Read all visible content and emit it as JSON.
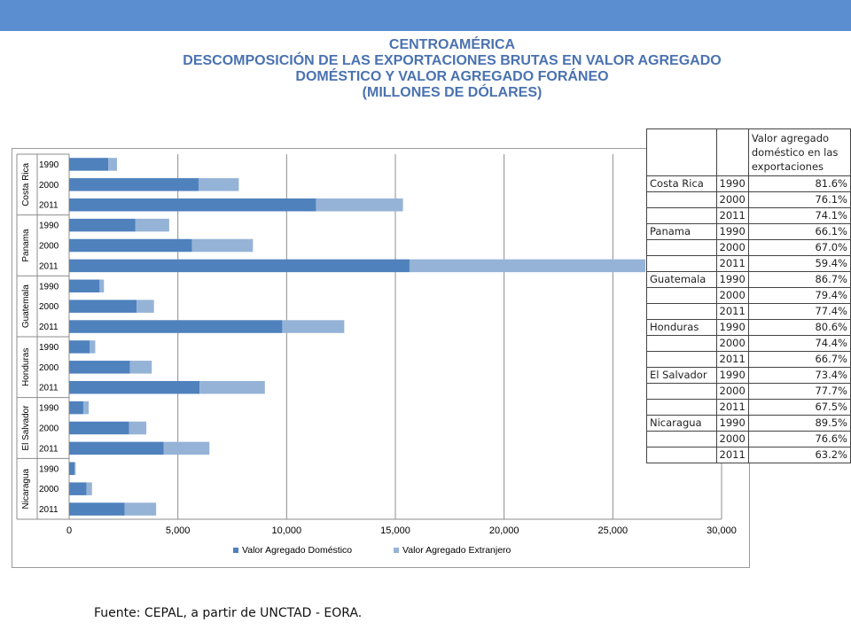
{
  "header": {
    "title_lines": [
      "CENTROAMÉRICA",
      "DESCOMPOSICIÓN DE LAS EXPORTACIONES BRUTAS EN VALOR AGREGADO",
      "DOMÉSTICO Y VALOR AGREGADO FORÁNEO",
      "(MILLONES DE DÓLARES)"
    ]
  },
  "colors": {
    "domestic": "#4f81bd",
    "foreign": "#95b3d7",
    "topbar": "#5a8ed0",
    "title": "#4a72b0"
  },
  "chart_data": {
    "type": "bar",
    "orientation": "horizontal",
    "stacked": true,
    "groups": [
      {
        "country": "Costa Rica",
        "years": [
          "1990",
          "2000",
          "2011"
        ]
      },
      {
        "country": "Panama",
        "years": [
          "1990",
          "2000",
          "2011"
        ]
      },
      {
        "country": "Guatemala",
        "years": [
          "1990",
          "2000",
          "2011"
        ]
      },
      {
        "country": "Honduras",
        "years": [
          "1990",
          "2000",
          "2011"
        ]
      },
      {
        "country": "El Salvador",
        "years": [
          "1990",
          "2000",
          "2011"
        ]
      },
      {
        "country": "Nicaragua",
        "years": [
          "1990",
          "2000",
          "2011"
        ]
      }
    ],
    "series": [
      {
        "name": "Valor Agregado Doméstico",
        "values": [
          1800,
          5950,
          11350,
          3050,
          5650,
          15650,
          1400,
          3100,
          9800,
          950,
          2800,
          6000,
          650,
          2750,
          4350,
          250,
          800,
          2550
        ]
      },
      {
        "name": "Valor Agregado Extranjero",
        "values": [
          400,
          1850,
          4000,
          1550,
          2800,
          10850,
          200,
          800,
          2850,
          250,
          1000,
          3000,
          250,
          800,
          2100,
          50,
          250,
          1450
        ]
      }
    ],
    "xlim": [
      0,
      30000
    ],
    "xticks": [
      "0",
      "5,000",
      "10,000",
      "15,000",
      "20,000",
      "25,000",
      "30,000"
    ],
    "grid": true,
    "legend_position": "bottom"
  },
  "table": {
    "header": "Valor agregado doméstico en las exportaciones",
    "rows": [
      {
        "country": "Costa Rica",
        "year": "1990",
        "value": "81.6%"
      },
      {
        "country": "",
        "year": "2000",
        "value": "76.1%"
      },
      {
        "country": "",
        "year": "2011",
        "value": "74.1%"
      },
      {
        "country": "Panama",
        "year": "1990",
        "value": "66.1%"
      },
      {
        "country": "",
        "year": "2000",
        "value": "67.0%"
      },
      {
        "country": "",
        "year": "2011",
        "value": "59.4%"
      },
      {
        "country": "Guatemala",
        "year": "1990",
        "value": "86.7%"
      },
      {
        "country": "",
        "year": "2000",
        "value": "79.4%"
      },
      {
        "country": "",
        "year": "2011",
        "value": "77.4%"
      },
      {
        "country": "Honduras",
        "year": "1990",
        "value": "80.6%"
      },
      {
        "country": "",
        "year": "2000",
        "value": "74.4%"
      },
      {
        "country": "",
        "year": "2011",
        "value": "66.7%"
      },
      {
        "country": "El Salvador",
        "year": "1990",
        "value": "73.4%"
      },
      {
        "country": "",
        "year": "2000",
        "value": "77.7%"
      },
      {
        "country": "",
        "year": "2011",
        "value": "67.5%"
      },
      {
        "country": "Nicaragua",
        "year": "1990",
        "value": "89.5%"
      },
      {
        "country": "",
        "year": "2000",
        "value": "76.6%"
      },
      {
        "country": "",
        "year": "2011",
        "value": "63.2%"
      }
    ]
  },
  "source": "Fuente: CEPAL, a partir de UNCTAD - EORA."
}
